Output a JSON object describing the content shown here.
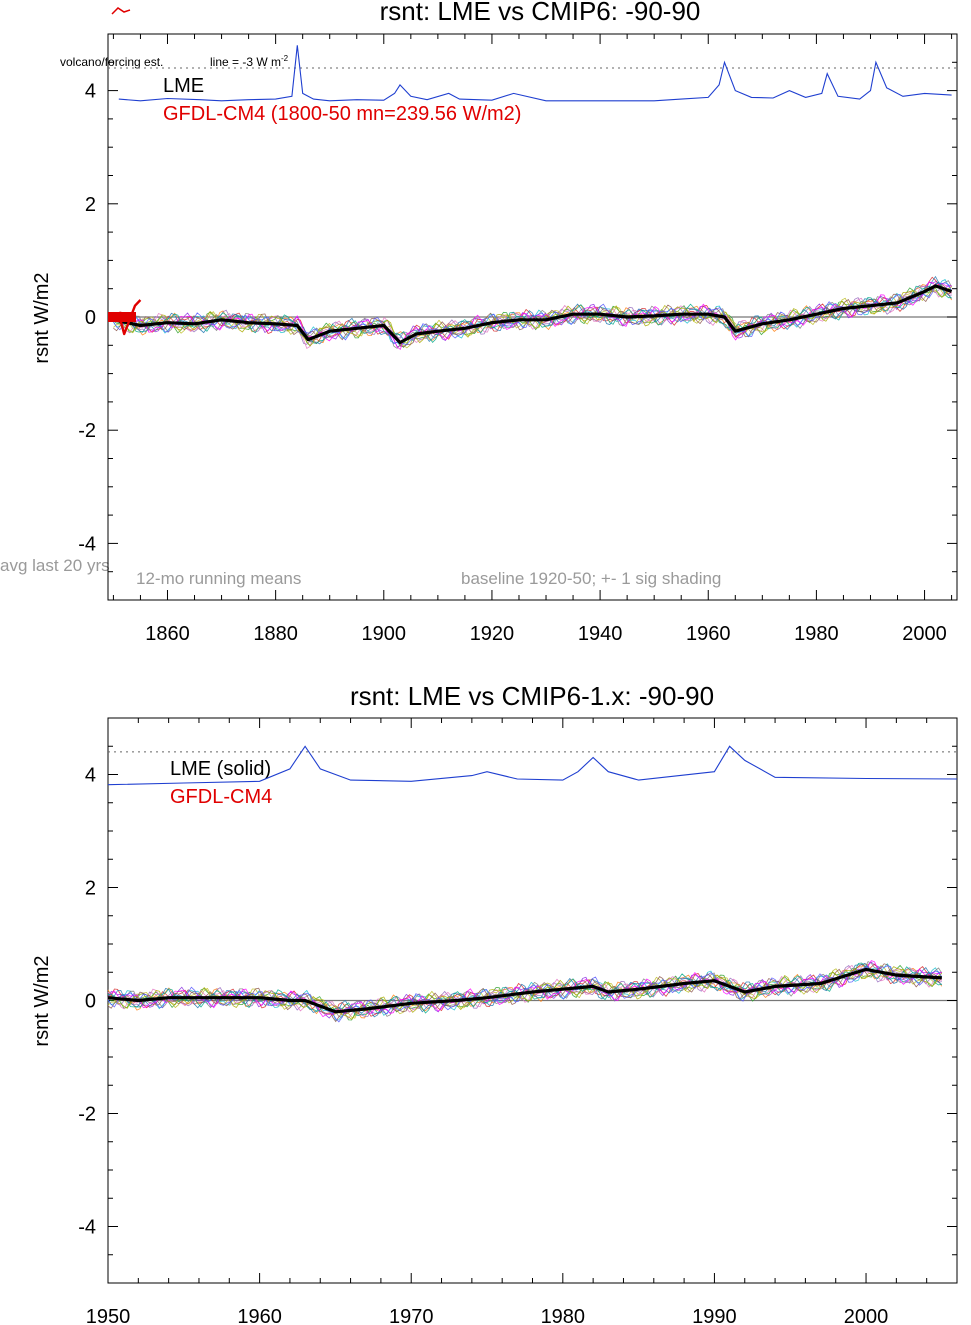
{
  "chart_data": [
    {
      "type": "line",
      "title": "rsnt: LME vs CMIP6: -90-90",
      "ylabel": "rsnt W/m2",
      "xlabel": "",
      "xlim": [
        1849,
        2006
      ],
      "ylim": [
        -5,
        5
      ],
      "xticks": [
        1860,
        1880,
        1900,
        1920,
        1940,
        1960,
        1980,
        2000
      ],
      "yticks": [
        4,
        2,
        0,
        -2,
        -4
      ],
      "grid": false,
      "legend": [
        {
          "label": "LME",
          "color": "#000000"
        },
        {
          "label": "GFDL-CM4 (1800-50 mn=239.56 W/m2)",
          "color": "#e00000"
        }
      ],
      "annotations": {
        "volcano_note": "volcano/forcing est.",
        "line_note": "line = -3 W m",
        "line_note_sup": "-2",
        "avg_note": "avg last 20 yrs",
        "running_note": "12-mo running means",
        "baseline_note": "baseline 1920-50; +- 1 sig shading"
      },
      "reference_dotted_y": 4.4,
      "volcano_series": {
        "color": "#1f3fd0",
        "baseline": 3.85,
        "x": [
          1851,
          1855,
          1860,
          1866,
          1870,
          1875,
          1880,
          1883,
          1884,
          1885,
          1887,
          1890,
          1895,
          1900,
          1902,
          1903,
          1905,
          1908,
          1912,
          1914,
          1920,
          1924,
          1930,
          1940,
          1945,
          1950,
          1955,
          1960,
          1962,
          1963,
          1965,
          1968,
          1972,
          1975,
          1978,
          1981,
          1982,
          1984,
          1988,
          1990,
          1991,
          1993,
          1996,
          2000,
          2005
        ],
        "y": [
          3.85,
          3.82,
          3.86,
          3.84,
          3.82,
          3.84,
          3.85,
          3.9,
          4.8,
          3.95,
          3.85,
          3.82,
          3.84,
          3.83,
          3.95,
          4.1,
          3.9,
          3.84,
          3.95,
          3.85,
          3.83,
          3.95,
          3.82,
          3.82,
          3.82,
          3.82,
          3.85,
          3.88,
          4.1,
          4.5,
          4.0,
          3.88,
          3.87,
          4.0,
          3.88,
          3.95,
          4.3,
          3.9,
          3.85,
          4.0,
          4.5,
          4.05,
          3.9,
          3.95,
          3.92
        ]
      },
      "series": [
        {
          "name": "LME",
          "color": "#000000",
          "x": [
            1850,
            1855,
            1860,
            1865,
            1870,
            1875,
            1880,
            1884,
            1886,
            1890,
            1895,
            1900,
            1903,
            1906,
            1910,
            1915,
            1920,
            1925,
            1930,
            1935,
            1940,
            1945,
            1950,
            1955,
            1960,
            1963,
            1965,
            1970,
            1975,
            1980,
            1985,
            1990,
            1995,
            2000,
            2002,
            2005
          ],
          "y": [
            -0.05,
            -0.15,
            -0.1,
            -0.12,
            -0.05,
            -0.1,
            -0.12,
            -0.15,
            -0.4,
            -0.25,
            -0.2,
            -0.15,
            -0.45,
            -0.3,
            -0.25,
            -0.2,
            -0.1,
            -0.05,
            -0.05,
            0.05,
            0.05,
            0.0,
            0.02,
            0.05,
            0.05,
            0.0,
            -0.25,
            -0.12,
            -0.05,
            0.05,
            0.15,
            0.2,
            0.25,
            0.45,
            0.55,
            0.45
          ]
        },
        {
          "name": "GFDL-CM4",
          "color": "#e00000",
          "x": [
            1850,
            1851,
            1852,
            1853,
            1854,
            1855
          ],
          "y": [
            0.0,
            0.05,
            -0.3,
            -0.05,
            0.2,
            0.3
          ]
        }
      ]
    },
    {
      "type": "line",
      "title": "rsnt: LME vs CMIP6-1.x: -90-90",
      "ylabel": "rsnt W/m2",
      "xlabel": "",
      "xlim": [
        1950,
        2006
      ],
      "ylim": [
        -5,
        5
      ],
      "xticks": [
        1950,
        1960,
        1970,
        1980,
        1990,
        2000
      ],
      "yticks": [
        4,
        2,
        0,
        -2,
        -4
      ],
      "grid": false,
      "legend": [
        {
          "label": "LME (solid)",
          "color": "#000000"
        },
        {
          "label": "GFDL-CM4",
          "color": "#e00000"
        }
      ],
      "reference_dotted_y": 4.4,
      "volcano_series": {
        "color": "#1f3fd0",
        "baseline": 3.85,
        "x": [
          1950,
          1955,
          1960,
          1962,
          1963,
          1964,
          1966,
          1970,
          1974,
          1975,
          1977,
          1980,
          1981,
          1982,
          1983,
          1985,
          1990,
          1991,
          1992,
          1994,
          2000,
          2006
        ],
        "y": [
          3.82,
          3.85,
          3.88,
          4.1,
          4.5,
          4.1,
          3.9,
          3.88,
          3.98,
          4.05,
          3.92,
          3.9,
          4.05,
          4.3,
          4.05,
          3.9,
          4.05,
          4.5,
          4.25,
          3.95,
          3.93,
          3.92
        ]
      },
      "series": [
        {
          "name": "LME (solid)",
          "color": "#000000",
          "x": [
            1950,
            1952,
            1954,
            1956,
            1958,
            1960,
            1962,
            1963,
            1965,
            1967,
            1970,
            1973,
            1975,
            1978,
            1980,
            1982,
            1983,
            1985,
            1988,
            1990,
            1992,
            1994,
            1997,
            2000,
            2002,
            2005
          ],
          "y": [
            0.05,
            0.0,
            0.05,
            0.05,
            0.05,
            0.05,
            0.0,
            0.0,
            -0.2,
            -0.15,
            -0.05,
            0.0,
            0.05,
            0.15,
            0.2,
            0.25,
            0.15,
            0.2,
            0.3,
            0.35,
            0.15,
            0.25,
            0.3,
            0.55,
            0.45,
            0.4
          ]
        }
      ]
    }
  ]
}
